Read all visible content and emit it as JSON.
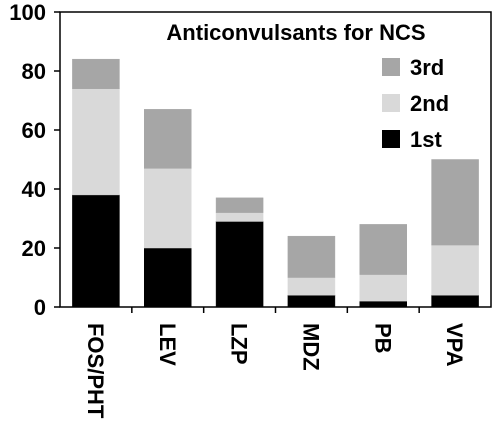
{
  "chart_data": {
    "type": "bar",
    "stacked": true,
    "title": "Anticonvulsants for NCS",
    "xlabel": "",
    "ylabel": "",
    "ylim": [
      0,
      100
    ],
    "yticks": [
      0,
      20,
      40,
      60,
      80,
      100
    ],
    "categories": [
      "FOS/PHT",
      "LEV",
      "LZP",
      "MDZ",
      "PB",
      "VPA"
    ],
    "series": [
      {
        "name": "1st",
        "color": "#000000",
        "values": [
          38,
          20,
          29,
          4,
          2,
          4
        ]
      },
      {
        "name": "2nd",
        "color": "#d9d9d9",
        "values": [
          36,
          27,
          3,
          6,
          9,
          17
        ]
      },
      {
        "name": "3rd",
        "color": "#a6a6a6",
        "values": [
          10,
          20,
          5,
          14,
          17,
          29
        ]
      }
    ],
    "legend": {
      "position": "right",
      "order": [
        "3rd",
        "2nd",
        "1st"
      ]
    },
    "grid": false
  }
}
